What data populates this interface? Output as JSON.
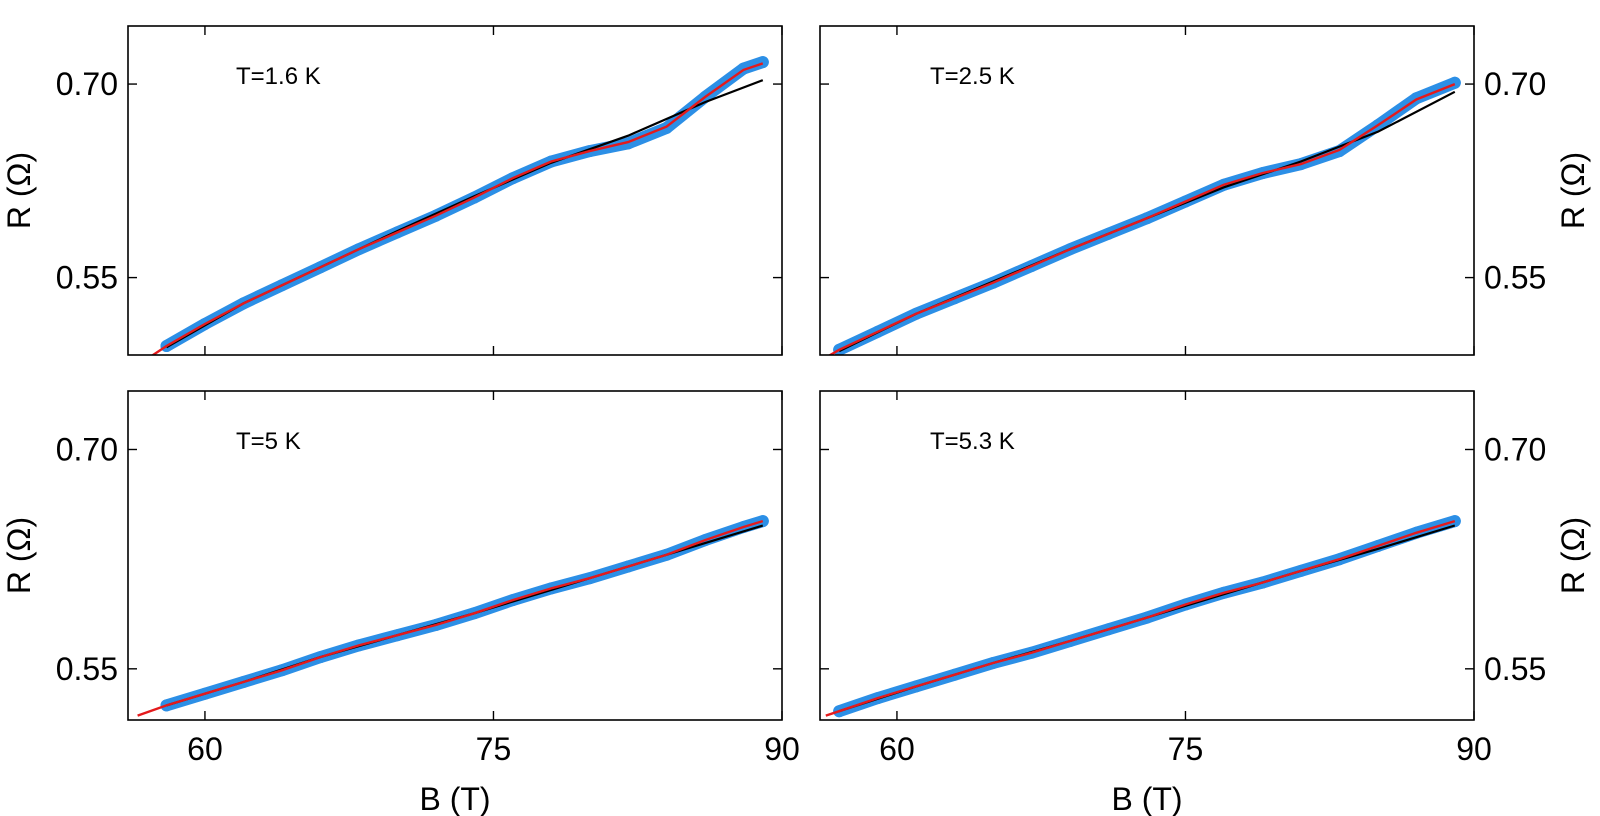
{
  "chart_data": [
    {
      "type": "scatter",
      "panel": "top-left",
      "annotation": "T=1.6 K",
      "xlabel": "",
      "ylabel": "R (Ω)",
      "xlim": [
        56,
        90
      ],
      "ylim": [
        0.49,
        0.745
      ],
      "xticks": [
        60,
        75,
        90
      ],
      "xtick_labels": [
        "",
        "",
        ""
      ],
      "yticks": [
        0.55,
        0.7
      ],
      "ytick_labels": [
        "0.55",
        "0.70"
      ],
      "y_axis_side": "left",
      "colors": {
        "data": "#2c8fe6",
        "fit": "#e41a1c",
        "background": "#000000"
      },
      "series": [
        {
          "role": "data",
          "x": [
            58,
            60,
            62,
            64,
            66,
            68,
            70,
            72,
            74,
            76,
            78,
            80,
            82,
            84,
            86,
            88,
            89
          ],
          "y": [
            0.497,
            0.514,
            0.53,
            0.544,
            0.558,
            0.572,
            0.585,
            0.598,
            0.612,
            0.627,
            0.64,
            0.648,
            0.654,
            0.666,
            0.69,
            0.712,
            0.717
          ]
        },
        {
          "role": "fit",
          "x": [
            56.5,
            58,
            60,
            62,
            64,
            66,
            68,
            70,
            72,
            74,
            76,
            78,
            80,
            82,
            84,
            86,
            88,
            89
          ],
          "y": [
            0.482,
            0.497,
            0.514,
            0.53,
            0.544,
            0.558,
            0.572,
            0.585,
            0.598,
            0.612,
            0.627,
            0.64,
            0.648,
            0.655,
            0.667,
            0.69,
            0.711,
            0.716
          ]
        },
        {
          "role": "background",
          "x": [
            58,
            62,
            66,
            70,
            74,
            78,
            82,
            86,
            89
          ],
          "y": [
            0.496,
            0.53,
            0.558,
            0.586,
            0.613,
            0.639,
            0.66,
            0.686,
            0.703
          ]
        }
      ]
    },
    {
      "type": "scatter",
      "panel": "top-right",
      "annotation": "T=2.5 K",
      "xlabel": "",
      "ylabel": "R (Ω)",
      "xlim": [
        56,
        90
      ],
      "ylim": [
        0.49,
        0.745
      ],
      "xticks": [
        60,
        75,
        90
      ],
      "xtick_labels": [
        "",
        "",
        ""
      ],
      "yticks": [
        0.55,
        0.7
      ],
      "ytick_labels": [
        "0.55",
        "0.70"
      ],
      "y_axis_side": "right",
      "colors": {
        "data": "#2c8fe6",
        "fit": "#e41a1c",
        "background": "#000000"
      },
      "series": [
        {
          "role": "data",
          "x": [
            57,
            59,
            61,
            63,
            65,
            67,
            69,
            71,
            73,
            75,
            77,
            79,
            81,
            83,
            85,
            87,
            89
          ],
          "y": [
            0.494,
            0.508,
            0.522,
            0.534,
            0.546,
            0.559,
            0.572,
            0.584,
            0.596,
            0.609,
            0.622,
            0.631,
            0.638,
            0.648,
            0.668,
            0.689,
            0.701
          ]
        },
        {
          "role": "fit",
          "x": [
            56.3,
            57,
            59,
            61,
            63,
            65,
            67,
            69,
            71,
            73,
            75,
            77,
            79,
            81,
            83,
            85,
            87,
            89
          ],
          "y": [
            0.488,
            0.494,
            0.508,
            0.522,
            0.534,
            0.546,
            0.559,
            0.572,
            0.584,
            0.596,
            0.609,
            0.622,
            0.631,
            0.638,
            0.649,
            0.668,
            0.688,
            0.7
          ]
        },
        {
          "role": "background",
          "x": [
            57,
            61,
            65,
            69,
            73,
            77,
            81,
            85,
            89
          ],
          "y": [
            0.493,
            0.522,
            0.547,
            0.572,
            0.596,
            0.62,
            0.64,
            0.663,
            0.694
          ]
        }
      ]
    },
    {
      "type": "scatter",
      "panel": "bottom-left",
      "annotation": "T=5 K",
      "xlabel": "B (T)",
      "ylabel": "R (Ω)",
      "xlim": [
        56,
        90
      ],
      "ylim": [
        0.515,
        0.74
      ],
      "xticks": [
        60,
        75,
        90
      ],
      "xtick_labels": [
        "60",
        "75",
        "90"
      ],
      "yticks": [
        0.55,
        0.7
      ],
      "ytick_labels": [
        "0.55",
        "0.70"
      ],
      "y_axis_side": "left",
      "colors": {
        "data": "#2c8fe6",
        "fit": "#e41a1c",
        "background": "#000000"
      },
      "series": [
        {
          "role": "data",
          "x": [
            58,
            60,
            62,
            64,
            66,
            68,
            70,
            72,
            74,
            76,
            78,
            80,
            82,
            84,
            86,
            88,
            89
          ],
          "y": [
            0.525,
            0.533,
            0.541,
            0.549,
            0.558,
            0.566,
            0.573,
            0.58,
            0.588,
            0.597,
            0.605,
            0.612,
            0.62,
            0.628,
            0.638,
            0.647,
            0.651
          ]
        },
        {
          "role": "fit",
          "x": [
            56.5,
            58,
            60,
            62,
            64,
            66,
            68,
            70,
            72,
            74,
            76,
            78,
            80,
            82,
            84,
            86,
            88,
            89
          ],
          "y": [
            0.518,
            0.525,
            0.533,
            0.541,
            0.549,
            0.558,
            0.566,
            0.573,
            0.58,
            0.588,
            0.597,
            0.605,
            0.612,
            0.62,
            0.628,
            0.638,
            0.647,
            0.651
          ]
        },
        {
          "role": "background",
          "x": [
            58,
            62,
            66,
            70,
            74,
            78,
            82,
            86,
            89
          ],
          "y": [
            0.525,
            0.541,
            0.558,
            0.573,
            0.588,
            0.604,
            0.62,
            0.636,
            0.648
          ]
        }
      ]
    },
    {
      "type": "scatter",
      "panel": "bottom-right",
      "annotation": "T=5.3 K",
      "xlabel": "B (T)",
      "ylabel": "R (Ω)",
      "xlim": [
        56,
        90
      ],
      "ylim": [
        0.515,
        0.74
      ],
      "xticks": [
        60,
        75,
        90
      ],
      "xtick_labels": [
        "60",
        "75",
        "90"
      ],
      "yticks": [
        0.55,
        0.7
      ],
      "ytick_labels": [
        "0.55",
        "0.70"
      ],
      "y_axis_side": "right",
      "colors": {
        "data": "#2c8fe6",
        "fit": "#e41a1c",
        "background": "#000000"
      },
      "series": [
        {
          "role": "data",
          "x": [
            57,
            59,
            61,
            63,
            65,
            67,
            69,
            71,
            73,
            75,
            77,
            79,
            81,
            83,
            85,
            87,
            89
          ],
          "y": [
            0.521,
            0.53,
            0.538,
            0.546,
            0.554,
            0.561,
            0.569,
            0.577,
            0.585,
            0.594,
            0.602,
            0.609,
            0.617,
            0.625,
            0.634,
            0.643,
            0.651
          ]
        },
        {
          "role": "fit",
          "x": [
            56.3,
            57,
            59,
            61,
            63,
            65,
            67,
            69,
            71,
            73,
            75,
            77,
            79,
            81,
            83,
            85,
            87,
            89
          ],
          "y": [
            0.518,
            0.521,
            0.53,
            0.538,
            0.546,
            0.554,
            0.561,
            0.569,
            0.577,
            0.585,
            0.594,
            0.602,
            0.609,
            0.617,
            0.625,
            0.634,
            0.643,
            0.651
          ]
        },
        {
          "role": "background",
          "x": [
            57,
            61,
            65,
            69,
            73,
            77,
            81,
            85,
            89
          ],
          "y": [
            0.521,
            0.538,
            0.554,
            0.569,
            0.585,
            0.601,
            0.617,
            0.632,
            0.648
          ]
        }
      ]
    }
  ]
}
